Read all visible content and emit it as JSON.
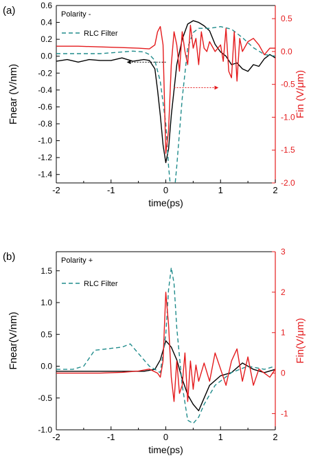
{
  "chart_data": [
    {
      "type": "line",
      "panel_label": "(a)",
      "annotation": "Polarity -",
      "xlabel": "time(ps)",
      "ylabel_left": "Fnear (V/nm)",
      "ylabel_right": "Fin (V/μm)",
      "xlim": [
        -2,
        2
      ],
      "ylim_left": [
        -1.5,
        0.6
      ],
      "ylim_right": [
        -2.0,
        0.7
      ],
      "xticks": [
        "-2",
        "-1",
        "0",
        "1",
        "2"
      ],
      "yticks_left": [
        "0.6",
        "0.4",
        "0.2",
        "0.0",
        "-0.2",
        "-0.4",
        "-0.6",
        "-0.8",
        "-1.0",
        "-1.2",
        "-1.4"
      ],
      "yticks_right": [
        "0.5",
        "0.0",
        "-0.5",
        "-1.0",
        "-1.5",
        "-2.0"
      ],
      "series": [
        {
          "name": "",
          "axis": "left",
          "color": "#000000",
          "style": "solid",
          "x": [
            -2.0,
            -1.8,
            -1.6,
            -1.4,
            -1.2,
            -1.0,
            -0.8,
            -0.6,
            -0.4,
            -0.3,
            -0.2,
            -0.15,
            -0.1,
            -0.05,
            0.0,
            0.05,
            0.1,
            0.2,
            0.3,
            0.4,
            0.5,
            0.6,
            0.7,
            0.8,
            0.9,
            1.0,
            1.1,
            1.2,
            1.3,
            1.4,
            1.5,
            1.6,
            1.7,
            1.8,
            1.9,
            2.0
          ],
          "y": [
            -0.06,
            -0.04,
            -0.07,
            -0.04,
            -0.05,
            -0.05,
            -0.02,
            -0.06,
            -0.04,
            -0.05,
            -0.15,
            -0.4,
            -0.7,
            -1.05,
            -1.26,
            -1.1,
            -0.7,
            -0.1,
            0.2,
            0.38,
            0.42,
            0.4,
            0.36,
            0.3,
            0.14,
            0.05,
            0.0,
            -0.1,
            -0.08,
            -0.15,
            -0.18,
            -0.1,
            -0.12,
            -0.03,
            0.02,
            -0.02
          ]
        },
        {
          "name": "RLC Filter",
          "axis": "left",
          "color": "#1f8b8b",
          "style": "dashed",
          "x": [
            -2.0,
            -1.6,
            -1.2,
            -1.0,
            -0.8,
            -0.6,
            -0.4,
            -0.3,
            -0.2,
            -0.1,
            0.0,
            0.05,
            0.1,
            0.15,
            0.2,
            0.3,
            0.4,
            0.5,
            0.6,
            0.8,
            1.0,
            1.2,
            1.4,
            1.6,
            1.8,
            2.0
          ],
          "y": [
            0.03,
            0.03,
            0.03,
            0.04,
            0.05,
            0.06,
            0.05,
            0.02,
            -0.05,
            -0.3,
            -0.8,
            -1.3,
            -1.65,
            -1.65,
            -1.3,
            -0.5,
            0.1,
            0.28,
            0.33,
            0.33,
            0.35,
            0.32,
            0.22,
            0.1,
            0.02,
            0.0
          ]
        },
        {
          "name": "",
          "axis": "right",
          "color": "#e41a1c",
          "style": "solid",
          "x": [
            -2.0,
            -1.6,
            -1.2,
            -0.8,
            -0.5,
            -0.3,
            -0.2,
            -0.15,
            -0.1,
            -0.05,
            0.0,
            0.05,
            0.1,
            0.15,
            0.2,
            0.25,
            0.3,
            0.35,
            0.4,
            0.45,
            0.5,
            0.55,
            0.6,
            0.65,
            0.7,
            0.75,
            0.8,
            0.9,
            1.0,
            1.05,
            1.1,
            1.15,
            1.2,
            1.25,
            1.3,
            1.35,
            1.4,
            1.5,
            1.6,
            1.7,
            1.8,
            1.9,
            2.0
          ],
          "y": [
            0.08,
            0.08,
            0.07,
            0.06,
            0.05,
            0.04,
            0.1,
            0.3,
            0.38,
            0.1,
            -1.55,
            -1.2,
            -0.2,
            0.3,
            0.1,
            -0.3,
            0.3,
            0.0,
            -0.2,
            0.4,
            0.05,
            0.2,
            -0.2,
            0.3,
            0.05,
            0.0,
            0.15,
            0.0,
            0.1,
            -0.15,
            0.35,
            -0.3,
            -0.4,
            0.3,
            -0.45,
            0.2,
            0.0,
            0.15,
            0.2,
            0.1,
            -0.05,
            0.05,
            0.05
          ]
        }
      ],
      "arrows": [
        {
          "color": "#000000",
          "from": [
            0.0,
            -0.07
          ],
          "to": [
            -0.7,
            -0.07
          ],
          "axis": "left"
        },
        {
          "color": "#e41a1c",
          "from": [
            0.15,
            -0.55
          ],
          "to": [
            0.95,
            -0.55
          ],
          "axis": "right"
        }
      ],
      "legend_placement": "top-left"
    },
    {
      "type": "line",
      "panel_label": "(b)",
      "annotation": "Polarity +",
      "xlabel": "time(ps)",
      "ylabel_left": "Fnear(V/nm)",
      "ylabel_right": "Fin(V/μm)",
      "xlim": [
        -2,
        2
      ],
      "ylim_left": [
        -1.0,
        1.8
      ],
      "ylim_right": [
        -1.4,
        3.0
      ],
      "xticks": [
        "-2",
        "-1",
        "0",
        "1",
        "2"
      ],
      "yticks_left": [
        "1.5",
        "1.0",
        "0.5",
        "0.0",
        "-0.5",
        "-1.0"
      ],
      "yticks_right": [
        "3",
        "2",
        "1",
        "0",
        "-1"
      ],
      "series": [
        {
          "name": "",
          "axis": "left",
          "color": "#000000",
          "style": "solid",
          "x": [
            -2.0,
            -1.6,
            -1.2,
            -0.8,
            -0.4,
            -0.2,
            -0.1,
            -0.05,
            0.0,
            0.05,
            0.1,
            0.2,
            0.3,
            0.4,
            0.5,
            0.6,
            0.7,
            0.8,
            1.0,
            1.2,
            1.4,
            1.6,
            1.8,
            2.0
          ],
          "y": [
            -0.08,
            -0.08,
            -0.08,
            -0.08,
            -0.08,
            -0.05,
            0.1,
            0.25,
            0.4,
            0.35,
            0.3,
            0.1,
            -0.2,
            -0.45,
            -0.6,
            -0.7,
            -0.5,
            -0.3,
            -0.15,
            -0.1,
            0.05,
            -0.05,
            -0.1,
            -0.05
          ]
        },
        {
          "name": "RLC Filter",
          "axis": "left",
          "color": "#1f8b8b",
          "style": "dashed",
          "x": [
            -2.0,
            -1.7,
            -1.5,
            -1.3,
            -1.0,
            -0.8,
            -0.65,
            -0.5,
            -0.3,
            -0.2,
            -0.1,
            0.0,
            0.05,
            0.1,
            0.15,
            0.2,
            0.3,
            0.4,
            0.5,
            0.6,
            0.7,
            0.9,
            1.2,
            1.5,
            1.8,
            2.0
          ],
          "y": [
            -0.05,
            -0.05,
            0.0,
            0.25,
            0.28,
            0.3,
            0.35,
            0.2,
            0.0,
            -0.05,
            -0.1,
            0.5,
            1.2,
            1.55,
            1.3,
            0.6,
            -0.3,
            -0.85,
            -0.9,
            -0.8,
            -0.6,
            -0.3,
            -0.1,
            0.0,
            -0.05,
            0.0
          ]
        },
        {
          "name": "",
          "axis": "right",
          "color": "#e41a1c",
          "style": "solid",
          "x": [
            -2.0,
            -1.6,
            -1.2,
            -0.8,
            -0.5,
            -0.3,
            -0.15,
            -0.1,
            -0.05,
            0.0,
            0.05,
            0.1,
            0.15,
            0.2,
            0.25,
            0.3,
            0.35,
            0.4,
            0.45,
            0.5,
            0.55,
            0.6,
            0.7,
            0.8,
            0.9,
            1.0,
            1.1,
            1.2,
            1.3,
            1.4,
            1.5,
            1.6,
            1.7,
            1.8,
            1.9,
            2.0
          ],
          "y": [
            0.0,
            0.0,
            0.0,
            0.02,
            0.05,
            0.1,
            0.0,
            -0.1,
            0.3,
            2.0,
            1.2,
            -0.1,
            -0.7,
            0.3,
            -0.5,
            -0.3,
            0.5,
            -0.7,
            0.3,
            -0.4,
            0.2,
            -0.2,
            0.25,
            -0.2,
            0.5,
            0.1,
            -0.3,
            0.3,
            0.6,
            -0.2,
            0.4,
            -0.3,
            0.1,
            0.0,
            -0.1,
            0.1
          ]
        }
      ],
      "legend_placement": "top-left"
    }
  ]
}
